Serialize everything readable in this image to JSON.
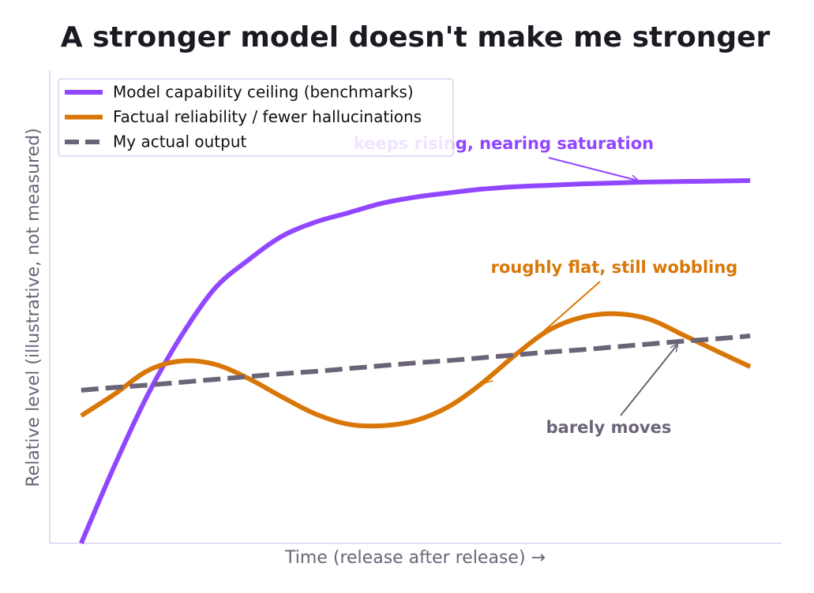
{
  "chart_data": {
    "type": "line",
    "title": "A stronger model doesn't make me stronger",
    "x_label": "Time (release after release) →",
    "y_label": "Relative level (illustrative, not measured)",
    "x": [
      0,
      0.5,
      1,
      1.5,
      2,
      2.5,
      3,
      3.5,
      4,
      4.5,
      5,
      5.5,
      6,
      6.5,
      7,
      7.5,
      8,
      8.5,
      9,
      9.5,
      10
    ],
    "xlim": [
      -0.47,
      10.47
    ],
    "ylim": [
      0,
      1
    ],
    "legend": "upper left",
    "series": [
      {
        "name": "Model capability ceiling (benchmarks)",
        "color": "#9146ff",
        "dash": "solid",
        "values": [
          0,
          0.165,
          0.316,
          0.44,
          0.54,
          0.6,
          0.65,
          0.68,
          0.7,
          0.72,
          0.733,
          0.742,
          0.75,
          0.755,
          0.758,
          0.761,
          0.763,
          0.765,
          0.766,
          0.767,
          0.768
        ]
      },
      {
        "name": "Factual reliability / fewer hallucinations",
        "color": "#d97706",
        "dash": "solid",
        "values": [
          0.27,
          0.316,
          0.366,
          0.386,
          0.379,
          0.349,
          0.31,
          0.274,
          0.252,
          0.249,
          0.26,
          0.29,
          0.34,
          0.4,
          0.452,
          0.479,
          0.486,
          0.474,
          0.441,
          0.407,
          0.374
        ]
      },
      {
        "name": "My actual output",
        "color": "#6b6478",
        "dash": "dashed",
        "values": [
          0.324,
          0.33,
          0.335,
          0.341,
          0.347,
          0.353,
          0.359,
          0.364,
          0.37,
          0.376,
          0.382,
          0.387,
          0.393,
          0.399,
          0.405,
          0.41,
          0.416,
          0.422,
          0.428,
          0.433,
          0.439
        ]
      }
    ],
    "annotations": [
      {
        "text": "keeps rising, nearing saturation",
        "color": "#9146ff"
      },
      {
        "text": "roughly flat, still wobbling",
        "color": "#d97706"
      },
      {
        "text": "barely moves",
        "color": "#6b6478"
      }
    ]
  }
}
